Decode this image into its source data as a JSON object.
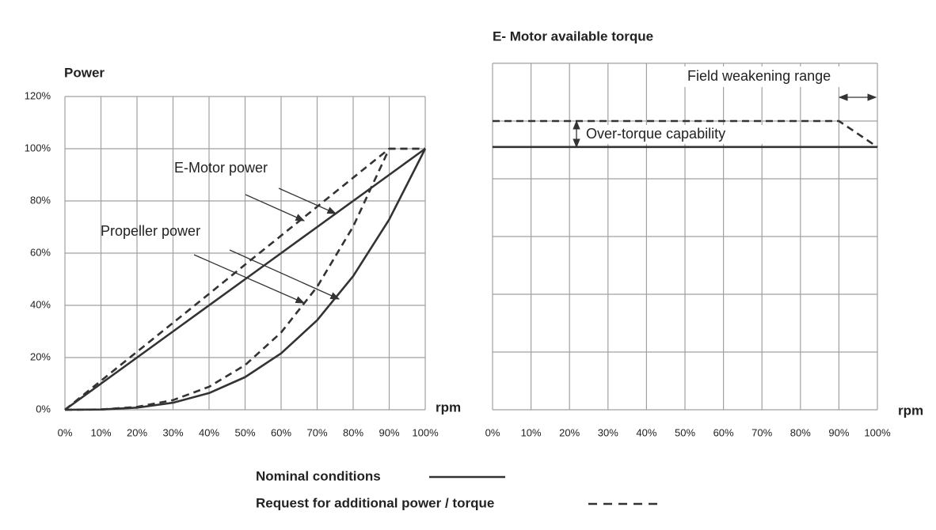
{
  "chart_data": [
    {
      "type": "line",
      "ylabel": "Power",
      "xlabel": "rpm",
      "x": [
        0,
        10,
        20,
        30,
        40,
        50,
        60,
        70,
        80,
        90,
        100
      ],
      "xlim": [
        0,
        100
      ],
      "xticks": [
        {
          "value": 0,
          "label": "0%"
        },
        {
          "value": 10,
          "label": "10%"
        },
        {
          "value": 20,
          "label": "20%"
        },
        {
          "value": 30,
          "label": "30%"
        },
        {
          "value": 40,
          "label": "40%"
        },
        {
          "value": 50,
          "label": "50%"
        },
        {
          "value": 60,
          "label": "60%"
        },
        {
          "value": 70,
          "label": "70%"
        },
        {
          "value": 80,
          "label": "80%"
        },
        {
          "value": 90,
          "label": "90%"
        },
        {
          "value": 100,
          "label": "100%"
        }
      ],
      "ylim": [
        0,
        120
      ],
      "yticks": [
        {
          "value": 0,
          "label": "0%"
        },
        {
          "value": 20,
          "label": "20%"
        },
        {
          "value": 40,
          "label": "40%"
        },
        {
          "value": 60,
          "label": "60%"
        },
        {
          "value": 80,
          "label": "80%"
        },
        {
          "value": 100,
          "label": "100%"
        },
        {
          "value": 120,
          "label": "120%"
        }
      ],
      "ytick_labels": true,
      "grid": true,
      "series": [
        {
          "color": "#333333",
          "dash": false,
          "values": [
            0,
            10,
            20,
            30,
            40,
            50,
            60,
            70,
            80,
            90,
            100
          ]
        },
        {
          "color": "#333333",
          "dash": true,
          "values": [
            0,
            11.1,
            22.2,
            33.3,
            44.4,
            55.6,
            66.7,
            77.8,
            88.9,
            100,
            100
          ]
        },
        {
          "color": "#333333",
          "dash": false,
          "values": [
            0,
            0.1,
            0.8,
            2.7,
            6.4,
            12.5,
            21.6,
            34.3,
            51.2,
            72.9,
            100
          ]
        },
        {
          "color": "#333333",
          "dash": true,
          "values": [
            0,
            0.1,
            1.1,
            3.7,
            8.8,
            17.1,
            29.6,
            47.1,
            70.2,
            100,
            100
          ]
        }
      ],
      "annotations": [
        {
          "text": "E-Motor power"
        },
        {
          "text": "Propeller power"
        }
      ]
    },
    {
      "type": "line",
      "title": "E- Motor available torque",
      "xlabel": "rpm",
      "xlim": [
        0,
        100
      ],
      "xticks": [
        {
          "value": 0,
          "label": "0%"
        },
        {
          "value": 10,
          "label": "10%"
        },
        {
          "value": 20,
          "label": "20%"
        },
        {
          "value": 30,
          "label": "30%"
        },
        {
          "value": 40,
          "label": "40%"
        },
        {
          "value": 50,
          "label": "50%"
        },
        {
          "value": 60,
          "label": "60%"
        },
        {
          "value": 70,
          "label": "70%"
        },
        {
          "value": 80,
          "label": "80%"
        },
        {
          "value": 90,
          "label": "90%"
        },
        {
          "value": 100,
          "label": "100%"
        }
      ],
      "ylim": [
        0,
        120
      ],
      "yticks": [
        0,
        20,
        40,
        60,
        80,
        100,
        120
      ],
      "ytick_labels": false,
      "grid": true,
      "series": [
        {
          "color": "#333333",
          "dash": false,
          "x": [
            0,
            100
          ],
          "values": [
            91,
            91
          ]
        },
        {
          "color": "#333333",
          "dash": true,
          "x": [
            0,
            90,
            100
          ],
          "values": [
            100,
            100,
            91
          ]
        }
      ],
      "annotations": [
        {
          "text": "Field weakening range"
        },
        {
          "text": "Over-torque capability"
        }
      ]
    }
  ],
  "legend": [
    {
      "label": "Nominal conditions",
      "dash": false
    },
    {
      "label": "Request for additional power / torque",
      "dash": true
    }
  ]
}
